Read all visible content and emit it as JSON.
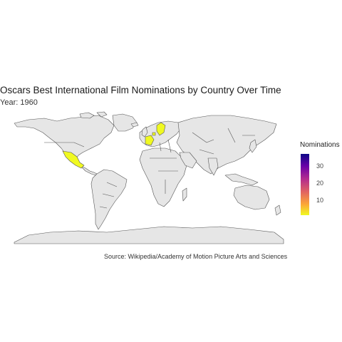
{
  "title": "Oscars Best International Film Nominations by Country Over Time",
  "subtitle": "Year: 1960",
  "caption": "Source: Wikipedia/Academy of Motion Picture Arts and Sciences",
  "legend": {
    "title": "Nominations",
    "ticks": [
      {
        "label": "30",
        "value": 30
      },
      {
        "label": "20",
        "value": 20
      },
      {
        "label": "10",
        "value": 10
      }
    ],
    "range": [
      1,
      37
    ],
    "colormap": "plasma"
  },
  "colors": {
    "land": "#e6e6e6",
    "border": "#555555",
    "nominated": "#f0f921",
    "background": "#ffffff"
  },
  "highlighted_countries": [
    "Mexico",
    "Sweden",
    "France",
    "Denmark"
  ]
}
